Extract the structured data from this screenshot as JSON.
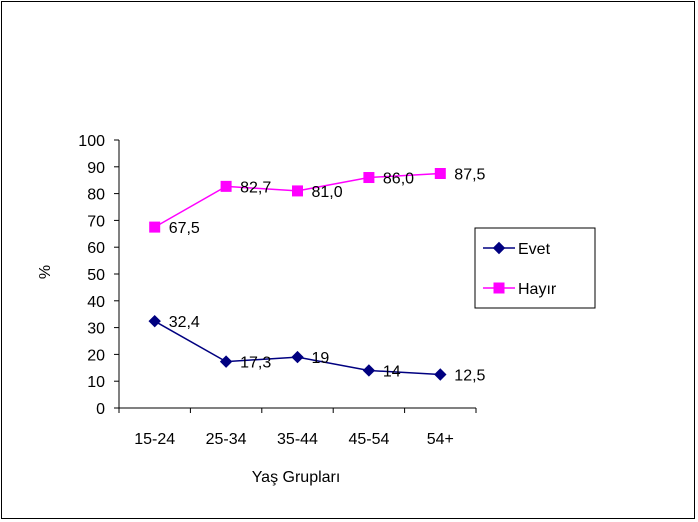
{
  "chart_data": {
    "type": "line",
    "title": "",
    "xlabel": "Yaş Grupları",
    "ylabel": "%",
    "categories": [
      "15-24",
      "25-34",
      "35-44",
      "45-54",
      "54+"
    ],
    "ylim": [
      0,
      100
    ],
    "yticks": [
      "0",
      "10",
      "20",
      "30",
      "40",
      "50",
      "60",
      "70",
      "80",
      "90",
      "100"
    ],
    "grid": false,
    "legend_position": "right",
    "series": [
      {
        "name": "Evet",
        "values": [
          32.4,
          17.3,
          19,
          14,
          12.5
        ],
        "labels": [
          "32,4",
          "17,3",
          "19",
          "14",
          "12,5"
        ],
        "color": "#000080",
        "marker": "diamond"
      },
      {
        "name": "Hayır",
        "values": [
          67.5,
          82.7,
          81.0,
          86.0,
          87.5
        ],
        "labels": [
          "67,5",
          "82,7",
          "81,0",
          "86,0",
          "87,5"
        ],
        "color": "#FF00FF",
        "marker": "square"
      }
    ]
  }
}
